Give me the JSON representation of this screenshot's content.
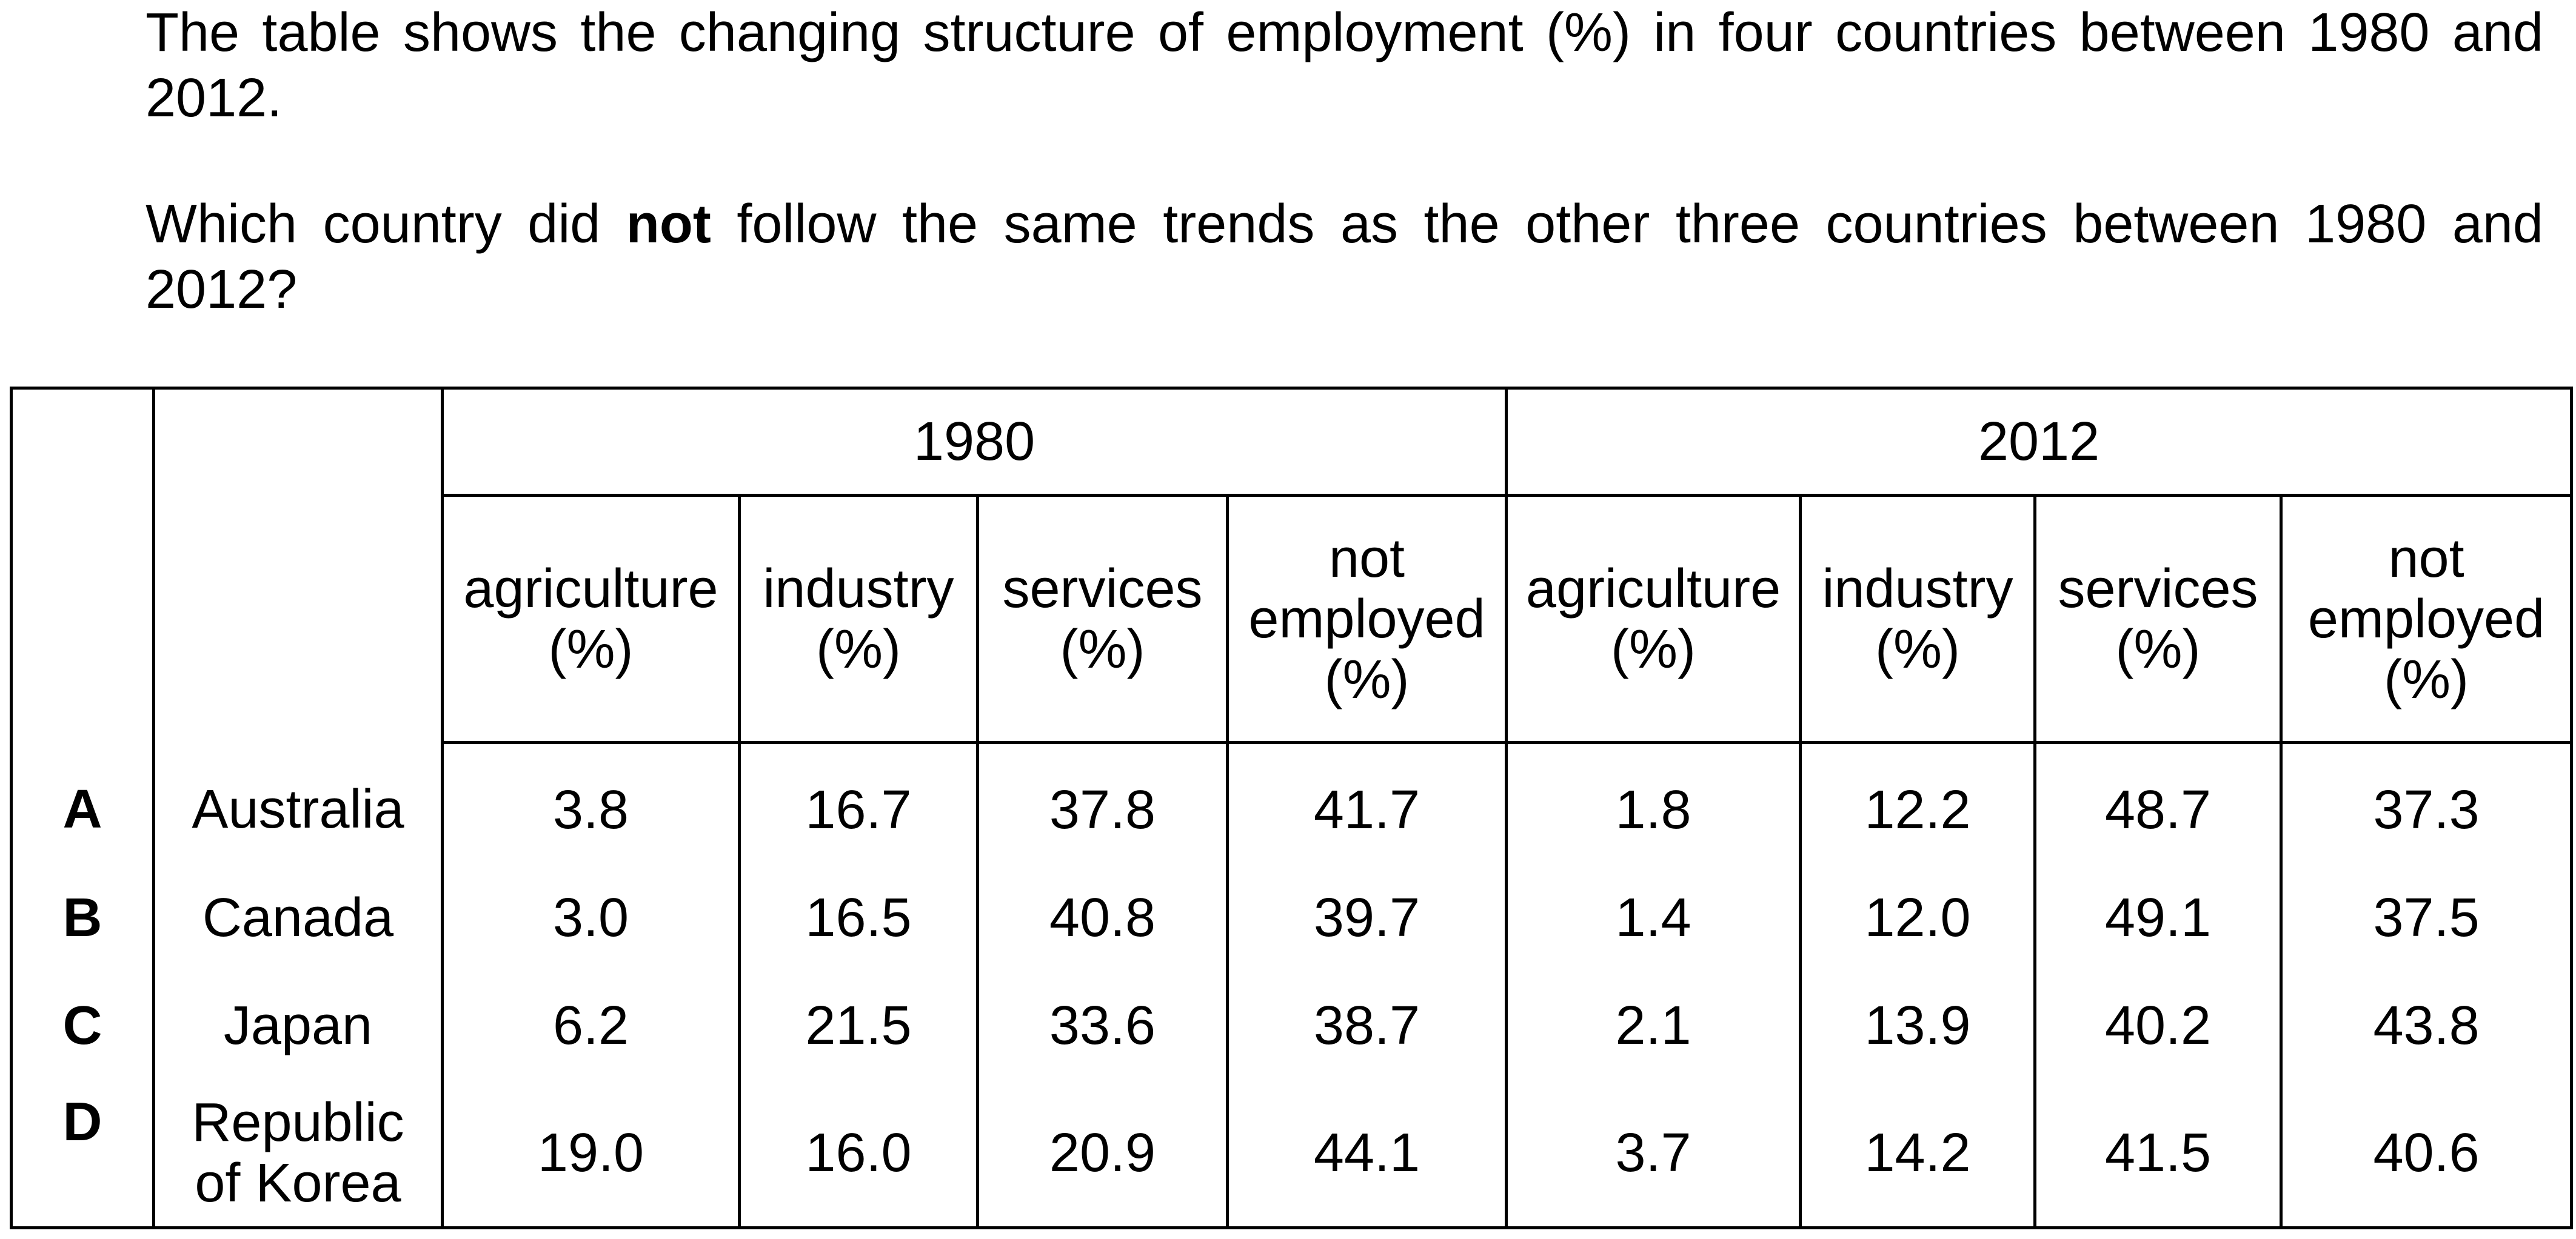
{
  "question": {
    "line1": "The table shows the changing structure of employment (%) in four countries between 1980 and 2012.",
    "line2_before": "Which country did ",
    "line2_bold": "not",
    "line2_after": " follow the same trends as the other three countries between 1980 and 2012?"
  },
  "table": {
    "years": [
      "1980",
      "2012"
    ],
    "headers": {
      "agriculture": [
        "agriculture",
        "(%)"
      ],
      "industry": [
        "industry",
        "(%)"
      ],
      "services": [
        "services",
        "(%)"
      ],
      "not_employed": [
        "not",
        "employed",
        "(%)"
      ]
    },
    "rows": [
      {
        "letter": "A",
        "country": [
          "Australia"
        ],
        "values": [
          "3.8",
          "16.7",
          "37.8",
          "41.7",
          "1.8",
          "12.2",
          "48.7",
          "37.3"
        ]
      },
      {
        "letter": "B",
        "country": [
          "Canada"
        ],
        "values": [
          "3.0",
          "16.5",
          "40.8",
          "39.7",
          "1.4",
          "12.0",
          "49.1",
          "37.5"
        ]
      },
      {
        "letter": "C",
        "country": [
          "Japan"
        ],
        "values": [
          "6.2",
          "21.5",
          "33.6",
          "38.7",
          "2.1",
          "13.9",
          "40.2",
          "43.8"
        ]
      },
      {
        "letter": "D",
        "country": [
          "Republic",
          "of Korea"
        ],
        "values": [
          "19.0",
          "16.0",
          "20.9",
          "44.1",
          "3.7",
          "14.2",
          "41.5",
          "40.6"
        ]
      }
    ]
  }
}
